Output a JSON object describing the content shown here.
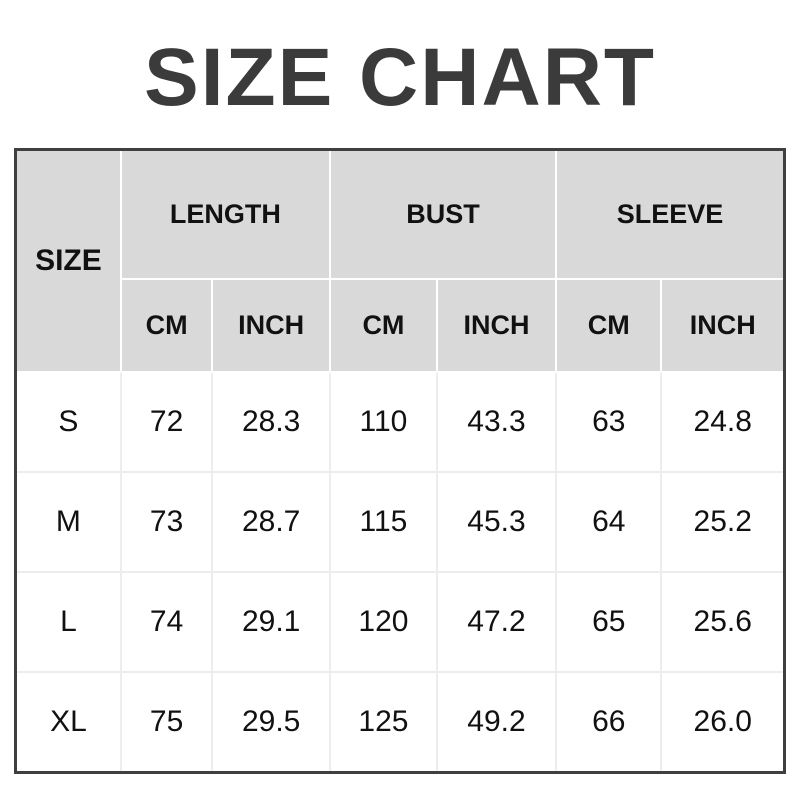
{
  "title": "SIZE CHART",
  "colors": {
    "title_text": "#3b3b3b",
    "header_bg": "#d9d9d9",
    "header_divider": "#ffffff",
    "outer_border": "#3f3f3f",
    "grid_line": "#ededed",
    "cell_text": "#111111"
  },
  "table": {
    "corner_label": "SIZE",
    "groups": [
      "LENGTH",
      "BUST",
      "SLEEVE"
    ],
    "units": [
      "CM",
      "INCH",
      "CM",
      "INCH",
      "CM",
      "INCH"
    ],
    "rows": [
      {
        "size": "S",
        "cells": [
          "72",
          "28.3",
          "110",
          "43.3",
          "63",
          "24.8"
        ]
      },
      {
        "size": "M",
        "cells": [
          "73",
          "28.7",
          "115",
          "45.3",
          "64",
          "25.2"
        ]
      },
      {
        "size": "L",
        "cells": [
          "74",
          "29.1",
          "120",
          "47.2",
          "65",
          "25.6"
        ]
      },
      {
        "size": "XL",
        "cells": [
          "75",
          "29.5",
          "125",
          "49.2",
          "66",
          "26.0"
        ]
      }
    ]
  },
  "chart_data": {
    "type": "table",
    "title": "SIZE CHART",
    "columns": [
      "SIZE",
      "LENGTH CM",
      "LENGTH INCH",
      "BUST CM",
      "BUST INCH",
      "SLEEVE CM",
      "SLEEVE INCH"
    ],
    "rows": [
      [
        "S",
        72,
        28.3,
        110,
        43.3,
        63,
        24.8
      ],
      [
        "M",
        73,
        28.7,
        115,
        45.3,
        64,
        25.2
      ],
      [
        "L",
        74,
        29.1,
        120,
        47.2,
        65,
        25.6
      ],
      [
        "XL",
        75,
        29.5,
        125,
        49.2,
        66,
        26.0
      ]
    ]
  }
}
